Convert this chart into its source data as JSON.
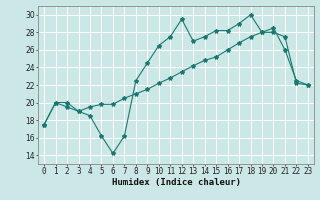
{
  "title": "",
  "xlabel": "Humidex (Indice chaleur)",
  "background_color": "#cce8e6",
  "grid_color": "#aad4d0",
  "line_color": "#1a7870",
  "x": [
    0,
    1,
    2,
    3,
    4,
    5,
    6,
    7,
    8,
    9,
    10,
    11,
    12,
    13,
    14,
    15,
    16,
    17,
    18,
    19,
    20,
    21,
    22,
    23
  ],
  "line1_y": [
    17.5,
    20.0,
    20.0,
    19.0,
    18.5,
    16.2,
    14.2,
    16.2,
    22.5,
    24.5,
    26.5,
    27.5,
    29.5,
    27.0,
    27.5,
    28.2,
    28.2,
    29.0,
    30.0,
    28.0,
    28.5,
    26.0,
    22.5,
    22.0
  ],
  "line2_y": [
    17.5,
    20.0,
    19.5,
    19.0,
    19.5,
    19.8,
    19.8,
    20.5,
    21.0,
    21.5,
    22.2,
    22.8,
    23.5,
    24.2,
    24.8,
    25.2,
    26.0,
    26.8,
    27.5,
    28.0,
    28.0,
    27.5,
    22.2,
    22.0
  ],
  "ylim": [
    13,
    31
  ],
  "xlim": [
    -0.5,
    23.5
  ],
  "yticks": [
    14,
    16,
    18,
    20,
    22,
    24,
    26,
    28,
    30
  ],
  "xtick_labels": [
    "0",
    "1",
    "2",
    "3",
    "4",
    "5",
    "6",
    "7",
    "8",
    "9",
    "10",
    "11",
    "12",
    "13",
    "14",
    "15",
    "16",
    "17",
    "18",
    "19",
    "20",
    "21",
    "22",
    "23"
  ],
  "fontsize_label": 6.5,
  "fontsize_tick": 5.5
}
